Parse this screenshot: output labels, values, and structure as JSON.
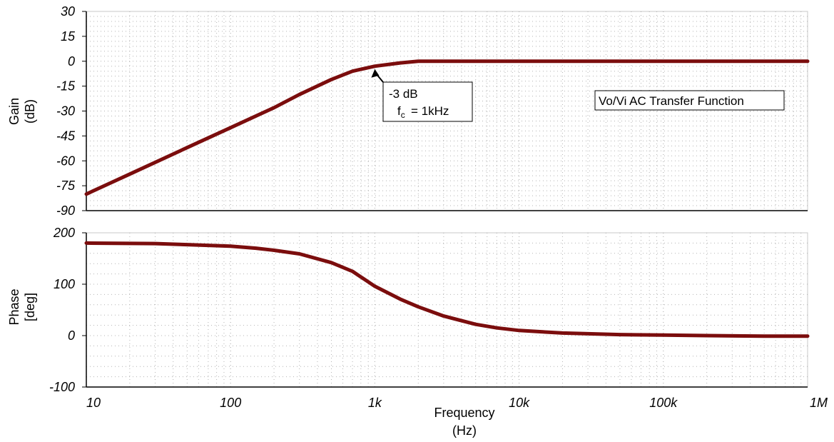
{
  "chart_data": [
    {
      "type": "line",
      "ylabel": [
        "Gain",
        "(dB)"
      ],
      "ylim": [
        -90,
        30
      ],
      "yticks": [
        "30",
        "15",
        "0",
        "-15",
        "-30",
        "-45",
        "-60",
        "-75",
        "-90"
      ],
      "x_scale": "log",
      "xlim": [
        10,
        1000000
      ],
      "grid": true,
      "series": [
        {
          "color": "#7b0d0d",
          "x": [
            10,
            20,
            50,
            100,
            200,
            300,
            500,
            700,
            1000,
            1500,
            2000,
            5000,
            1000000
          ],
          "y": [
            -80,
            -68,
            -52,
            -40,
            -28,
            -20,
            -11,
            -6,
            -3,
            -1,
            0,
            0,
            0
          ]
        }
      ],
      "annotations": {
        "cutoff_label": "-3 dB",
        "cutoff_freq": "= 1kHz",
        "cutoff_x": 1000,
        "cutoff_y": -3,
        "title_box": "Vo/Vi AC Transfer Function"
      }
    },
    {
      "type": "line",
      "ylabel": [
        "Phase",
        "[deg]"
      ],
      "ylim": [
        -100,
        200
      ],
      "yticks": [
        "200",
        "100",
        "0",
        "-100"
      ],
      "x_scale": "log",
      "xlim": [
        10,
        1000000
      ],
      "grid": true,
      "xlabel": [
        "Frequency",
        "(Hz)"
      ],
      "xticks": [
        "10",
        "100",
        "1k",
        "10k",
        "100k",
        "1M"
      ],
      "series": [
        {
          "color": "#7b0d0d",
          "x": [
            10,
            30,
            50,
            100,
            150,
            200,
            300,
            500,
            700,
            1000,
            1500,
            2000,
            3000,
            5000,
            7000,
            10000,
            20000,
            50000,
            100000,
            200000,
            500000,
            1000000
          ],
          "y": [
            180,
            179,
            177,
            174,
            170,
            166,
            159,
            142,
            125,
            96,
            71,
            56,
            38,
            22,
            15,
            10,
            5,
            2,
            1,
            0,
            -1,
            -1
          ]
        }
      ]
    }
  ]
}
